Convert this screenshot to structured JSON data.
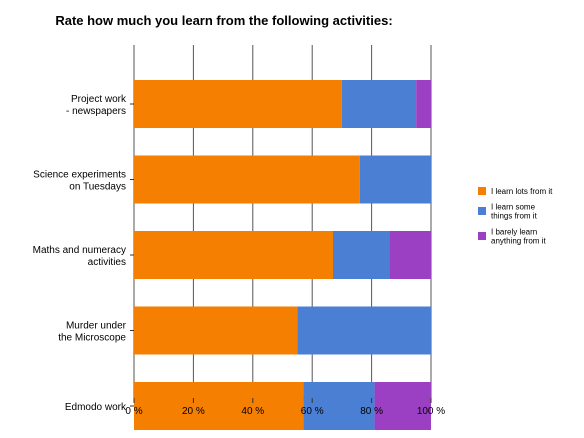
{
  "chart_data": {
    "type": "bar",
    "orientation": "horizontal",
    "stacked": true,
    "title": "Rate how much you learn from the following activities:",
    "categories": [
      [
        "Project work",
        "- newspapers"
      ],
      [
        "Science experiments",
        "on Tuesdays"
      ],
      [
        "Maths and numeracy",
        "activities"
      ],
      [
        "Murder under",
        "the Microscope"
      ],
      [
        "Edmodo work"
      ]
    ],
    "series": [
      {
        "name": "I learn lots from it",
        "legend_lines": [
          "I learn lots from it"
        ],
        "color": "#f47f00",
        "values": [
          70,
          76,
          67,
          55,
          57
        ]
      },
      {
        "name": "I learn some things from it",
        "legend_lines": [
          "I learn some",
          "things from it"
        ],
        "color": "#4a7fd4",
        "values": [
          25,
          24,
          19,
          45,
          24
        ]
      },
      {
        "name": "I barely learn anything from it",
        "legend_lines": [
          "I barely learn",
          "anything from it"
        ],
        "color": "#9b3fc3",
        "values": [
          5,
          0,
          14,
          0,
          19
        ]
      }
    ],
    "xlim": [
      0,
      100
    ],
    "x_ticks": [
      "0 %",
      "20 %",
      "40 %",
      "60 %",
      "80 %",
      "100 %"
    ],
    "grid": true,
    "legend_position": "right"
  }
}
